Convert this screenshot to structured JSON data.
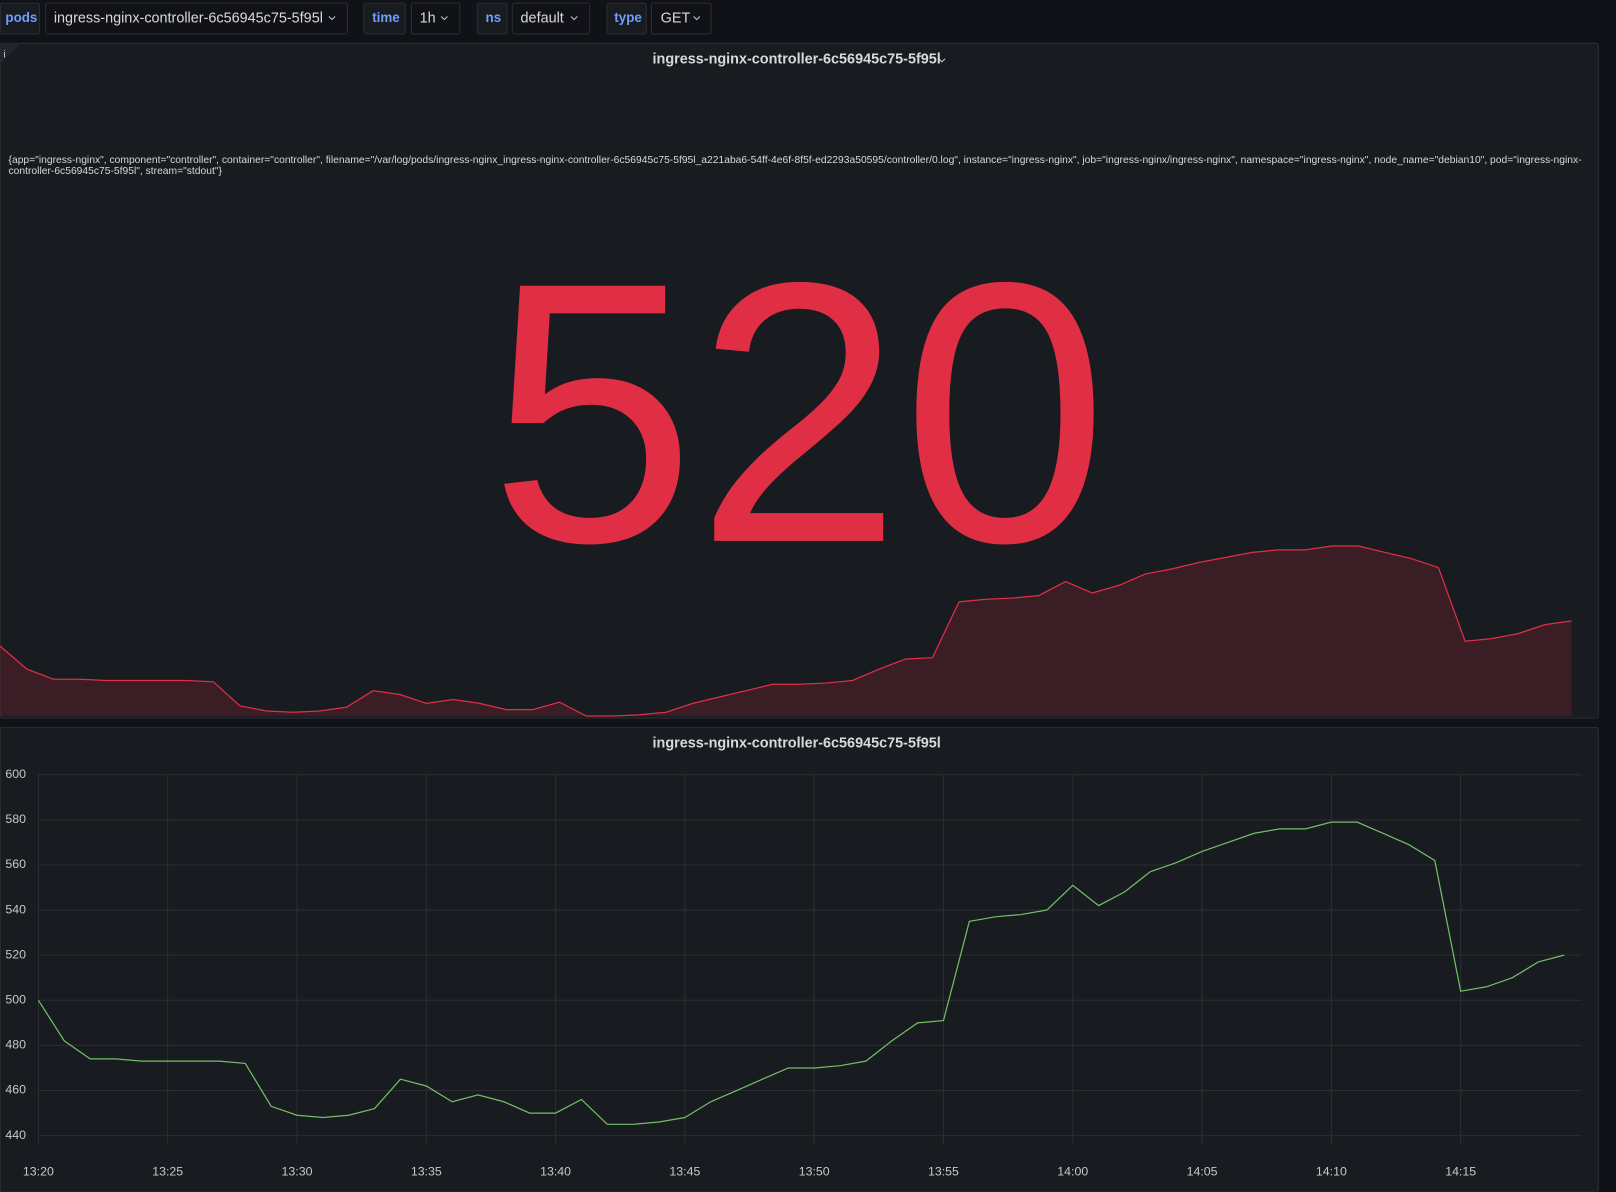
{
  "variables": [
    {
      "label": "pods",
      "value": "ingress-nginx-controller-6c56945c75-5f95l"
    },
    {
      "label": "time",
      "value": "1h"
    },
    {
      "label": "ns",
      "value": "default"
    },
    {
      "label": "type",
      "value": "GET"
    }
  ],
  "stat_panel": {
    "title": "ingress-nginx-controller-6c56945c75-5f95l",
    "legend": "{app=\"ingress-nginx\", component=\"controller\", container=\"controller\", filename=\"/var/log/pods/ingress-nginx_ingress-nginx-controller-6c56945c75-5f95l_a221aba6-54ff-4e6f-8f5f-ed2293a50595/controller/0.log\", instance=\"ingress-nginx\", job=\"ingress-nginx/ingress-nginx\", namespace=\"ingress-nginx\", node_name=\"debian10\", pod=\"ingress-nginx-controller-6c56945c75-5f95l\", stream=\"stdout\"}",
    "value": 520,
    "color": "#e02f44"
  },
  "chart_data": {
    "type": "line",
    "title": "ingress-nginx-controller-6c56945c75-5f95l",
    "x": [
      "13:20",
      "13:21",
      "13:22",
      "13:23",
      "13:24",
      "13:25",
      "13:26",
      "13:27",
      "13:28",
      "13:29",
      "13:30",
      "13:31",
      "13:32",
      "13:33",
      "13:34",
      "13:35",
      "13:36",
      "13:37",
      "13:38",
      "13:39",
      "13:40",
      "13:41",
      "13:42",
      "13:43",
      "13:44",
      "13:45",
      "13:46",
      "13:47",
      "13:48",
      "13:49",
      "13:50",
      "13:51",
      "13:52",
      "13:53",
      "13:54",
      "13:55",
      "13:56",
      "13:57",
      "13:58",
      "13:59",
      "14:00",
      "14:01",
      "14:02",
      "14:03",
      "14:04",
      "14:05",
      "14:06",
      "14:07",
      "14:08",
      "14:09",
      "14:10",
      "14:11",
      "14:12",
      "14:13",
      "14:14",
      "14:15",
      "14:16",
      "14:17",
      "14:18",
      "14:19"
    ],
    "series": [
      {
        "color": "#73bf69",
        "values": [
          500,
          482,
          474,
          474,
          473,
          473,
          473,
          473,
          472,
          453,
          449,
          448,
          449,
          452,
          465,
          462,
          455,
          458,
          455,
          450,
          450,
          456,
          445,
          445,
          446,
          448,
          455,
          460,
          465,
          470,
          470,
          471,
          473,
          482,
          490,
          491,
          535,
          537,
          538,
          540,
          551,
          542,
          548,
          557,
          561,
          566,
          570,
          574,
          576,
          576,
          579,
          579,
          574,
          569,
          562,
          504,
          506,
          510,
          517,
          520
        ]
      }
    ],
    "xlim": [
      "13:20",
      "14:20"
    ],
    "xticks": [
      "13:20",
      "13:25",
      "13:30",
      "13:35",
      "13:40",
      "13:45",
      "13:50",
      "13:55",
      "14:00",
      "14:05",
      "14:10",
      "14:15"
    ],
    "ylim": [
      436,
      600
    ],
    "yticks": [
      440,
      460,
      480,
      500,
      520,
      540,
      560,
      580,
      600
    ],
    "grid": true
  }
}
